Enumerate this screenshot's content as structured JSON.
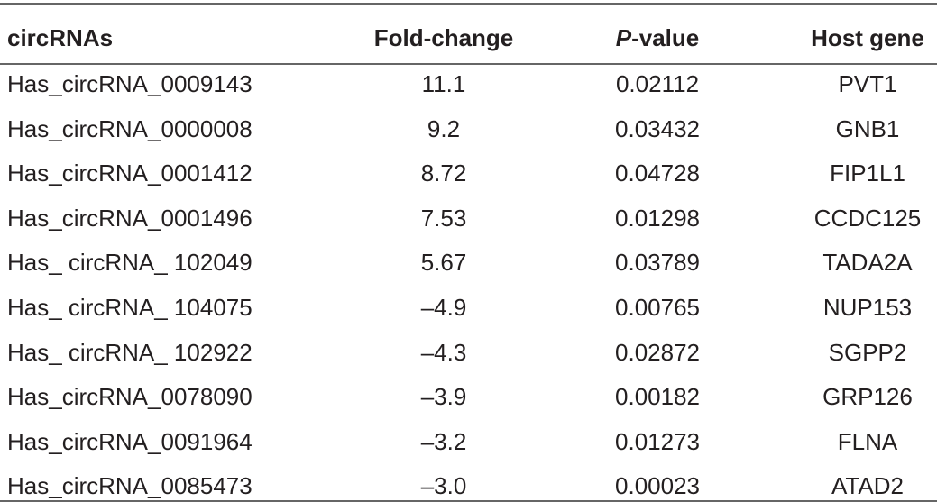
{
  "table": {
    "header": [
      "circRNAs",
      "Fold-change",
      [
        "P",
        "-value"
      ],
      "Host gene"
    ],
    "rows": [
      [
        "Has_circRNA_0009143",
        "11.1",
        "0.02112",
        "PVT1"
      ],
      [
        "Has_circRNA_0000008",
        "9.2",
        "0.03432",
        "GNB1"
      ],
      [
        "Has_circRNA_0001412",
        "8.72",
        "0.04728",
        "FIP1L1"
      ],
      [
        "Has_circRNA_0001496",
        "7.53",
        "0.01298",
        "CCDC125"
      ],
      [
        "Has_ circRNA_ 102049",
        "5.67",
        "0.03789",
        "TADA2A"
      ],
      [
        "Has_ circRNA_ 104075",
        "–4.9",
        "0.00765",
        "NUP153"
      ],
      [
        "Has_ circRNA_ 102922",
        "–4.3",
        "0.02872",
        "SGPP2"
      ],
      [
        "Has_circRNA_0078090",
        "–3.9",
        "0.00182",
        "GRP126"
      ],
      [
        "Has_circRNA_0091964",
        "–3.2",
        "0.01273",
        "FLNA"
      ],
      [
        "Has_circRNA_0085473",
        "–3.0",
        "0.00023",
        "ATAD2"
      ]
    ]
  }
}
